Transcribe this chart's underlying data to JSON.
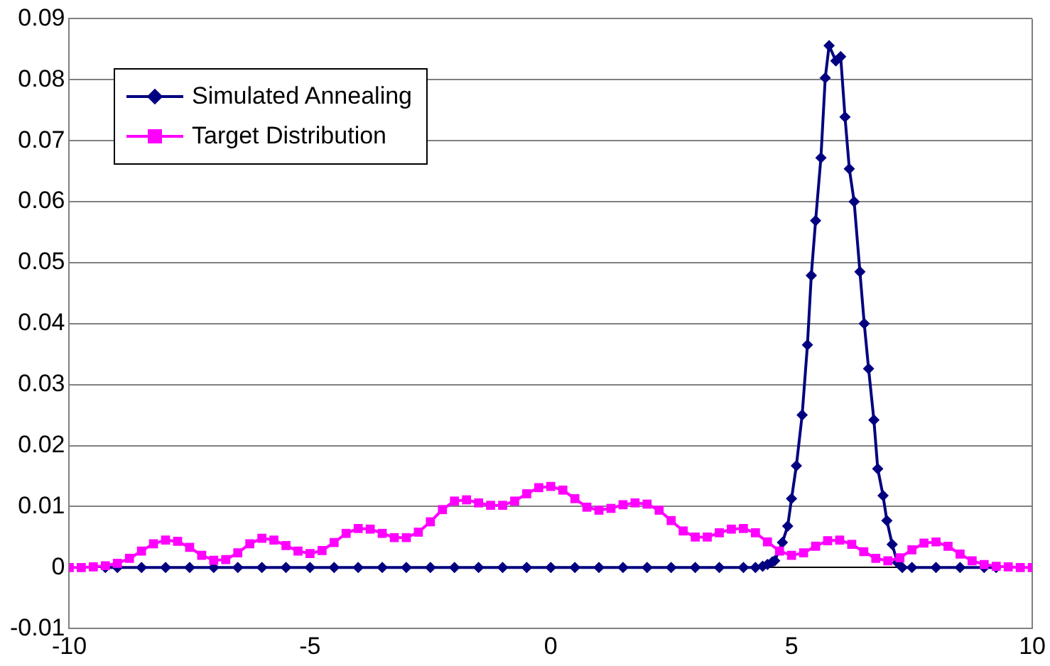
{
  "chart_data": {
    "type": "line",
    "xlim": [
      -10,
      10
    ],
    "xticks": [
      -10,
      -5,
      0,
      5,
      10
    ],
    "ylim": [
      -0.01,
      0.09
    ],
    "yticks": [
      -0.01,
      0,
      0.01,
      0.02,
      0.03,
      0.04,
      0.05,
      0.06,
      0.07,
      0.08,
      0.09
    ],
    "grid": "y",
    "legend": "top left",
    "line_style": "solid",
    "series": [
      {
        "name": "Simulated Annealing",
        "color": "#000080",
        "marker": "diamond",
        "x": [
          -9.25,
          -9,
          -8.5,
          -8,
          -7.5,
          -7,
          -6.5,
          -6,
          -5.5,
          -5,
          -4.5,
          -4,
          -3.5,
          -3,
          -2.5,
          -2,
          -1.5,
          -1,
          -0.5,
          0,
          0.5,
          1,
          1.5,
          2,
          2.5,
          3,
          3.5,
          4,
          4.25,
          4.4,
          4.5,
          4.6,
          4.65,
          4.81,
          4.92,
          5.0,
          5.1,
          5.22,
          5.33,
          5.41,
          5.5,
          5.61,
          5.7,
          5.78,
          5.92,
          6.02,
          6.11,
          6.2,
          6.3,
          6.42,
          6.51,
          6.6,
          6.71,
          6.79,
          6.9,
          6.98,
          7.09,
          7.2,
          7.3,
          7.5,
          8,
          8.5,
          9,
          9.25
        ],
        "values": [
          0,
          0,
          0,
          0,
          0,
          0,
          0,
          0,
          0,
          0,
          0,
          0,
          0,
          0,
          0,
          0,
          0,
          0,
          0,
          0,
          0,
          0,
          0,
          0,
          0,
          0,
          0,
          0,
          0,
          0.0002,
          0.0005,
          0.0009,
          0.0011,
          0.0041,
          0.0068,
          0.0113,
          0.0167,
          0.025,
          0.0365,
          0.0479,
          0.0569,
          0.0672,
          0.0803,
          0.0856,
          0.0831,
          0.0838,
          0.0739,
          0.0654,
          0.06,
          0.0485,
          0.04,
          0.0326,
          0.0242,
          0.0162,
          0.0118,
          0.0077,
          0.0038,
          0.0008,
          0,
          0,
          0,
          0,
          0,
          0
        ]
      },
      {
        "name": "Target Distribution",
        "color": "#ff00ff",
        "marker": "square",
        "x": [
          -10,
          -9.75,
          -9.5,
          -9.25,
          -9,
          -8.75,
          -8.5,
          -8.25,
          -8,
          -7.75,
          -7.5,
          -7.25,
          -7,
          -6.75,
          -6.5,
          -6.25,
          -6,
          -5.75,
          -5.5,
          -5.25,
          -5,
          -4.75,
          -4.5,
          -4.25,
          -4,
          -3.75,
          -3.5,
          -3.25,
          -3,
          -2.75,
          -2.5,
          -2.25,
          -2,
          -1.75,
          -1.5,
          -1.25,
          -1,
          -0.75,
          -0.5,
          -0.25,
          0,
          0.25,
          0.5,
          0.75,
          1,
          1.25,
          1.5,
          1.75,
          2,
          2.25,
          2.5,
          2.75,
          3,
          3.25,
          3.5,
          3.75,
          4,
          4.25,
          4.5,
          4.75,
          5,
          5.25,
          5.5,
          5.75,
          6,
          6.25,
          6.5,
          6.75,
          7,
          7.25,
          7.5,
          7.75,
          8,
          8.25,
          8.5,
          8.75,
          9,
          9.25,
          9.5,
          9.75,
          10
        ],
        "values": [
          0,
          0,
          0.0001,
          0.0003,
          0.0007,
          0.0015,
          0.0027,
          0.0039,
          0.0045,
          0.0043,
          0.0033,
          0.002,
          0.0012,
          0.0013,
          0.0024,
          0.0039,
          0.0048,
          0.0045,
          0.0036,
          0.0027,
          0.0023,
          0.0028,
          0.0041,
          0.0056,
          0.0064,
          0.0063,
          0.0056,
          0.0049,
          0.0049,
          0.0058,
          0.0075,
          0.0095,
          0.0109,
          0.0111,
          0.0106,
          0.0102,
          0.0102,
          0.0109,
          0.0121,
          0.0131,
          0.0133,
          0.0127,
          0.0113,
          0.0099,
          0.0094,
          0.0097,
          0.0103,
          0.0106,
          0.0104,
          0.0094,
          0.0077,
          0.006,
          0.005,
          0.005,
          0.0057,
          0.0063,
          0.0064,
          0.0057,
          0.0042,
          0.0027,
          0.002,
          0.0024,
          0.0035,
          0.0044,
          0.0045,
          0.0038,
          0.0026,
          0.0015,
          0.0011,
          0.0016,
          0.0029,
          0.004,
          0.0042,
          0.0035,
          0.0022,
          0.0011,
          0.0005,
          0.0002,
          0.0001,
          0,
          0
        ]
      }
    ]
  }
}
